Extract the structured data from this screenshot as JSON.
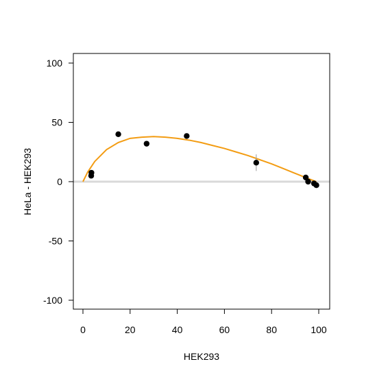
{
  "chart_data": {
    "type": "scatter",
    "xlabel": "HEK293",
    "ylabel": "HeLa - HEK293",
    "xlim": [
      0,
      100
    ],
    "ylim": [
      -100,
      100
    ],
    "x_ticks": [
      0,
      20,
      40,
      60,
      80,
      100
    ],
    "y_ticks": [
      -100,
      -50,
      0,
      50,
      100
    ],
    "x_tick_labels": [
      "0",
      "20",
      "40",
      "60",
      "80",
      "100"
    ],
    "y_tick_labels": [
      "-100",
      "-50",
      "0",
      "50",
      "100"
    ],
    "grid": false,
    "reference_line": {
      "y": 0,
      "color": "#d9d9d9"
    },
    "points": [
      {
        "x": 3.5,
        "y": 5.0,
        "err_low": 3.5,
        "err_high": 6.5
      },
      {
        "x": 3.6,
        "y": 7.5,
        "err_low": 6.5,
        "err_high": 8.5
      },
      {
        "x": 15.0,
        "y": 40.0,
        "err_low": 39.0,
        "err_high": 41.0
      },
      {
        "x": 27.0,
        "y": 32.0,
        "err_low": 31.0,
        "err_high": 33.0
      },
      {
        "x": 44.0,
        "y": 38.5,
        "err_low": 37.5,
        "err_high": 39.5
      },
      {
        "x": 73.5,
        "y": 16.0,
        "err_low": 9.0,
        "err_high": 23.0
      },
      {
        "x": 94.5,
        "y": 3.5,
        "err_low": 2.5,
        "err_high": 4.5
      },
      {
        "x": 95.5,
        "y": 0.0,
        "err_low": -1.0,
        "err_high": 1.0
      },
      {
        "x": 98.0,
        "y": -1.5,
        "err_low": -2.5,
        "err_high": -0.5
      },
      {
        "x": 99.0,
        "y": -3.0,
        "err_low": -4.0,
        "err_high": -2.0
      }
    ],
    "fit_curve": {
      "color": "#f39c12",
      "x": [
        0,
        2,
        5,
        10,
        15,
        20,
        25,
        30,
        35,
        40,
        45,
        50,
        55,
        60,
        65,
        70,
        75,
        80,
        85,
        90,
        95,
        99
      ],
      "y": [
        0,
        8,
        17,
        27,
        33,
        36.5,
        37.5,
        38,
        37.5,
        36.5,
        35,
        33,
        30.5,
        28,
        25,
        22,
        18.5,
        15,
        11,
        7,
        3,
        0
      ]
    },
    "point_color": "#000000",
    "error_color": "#999999"
  }
}
